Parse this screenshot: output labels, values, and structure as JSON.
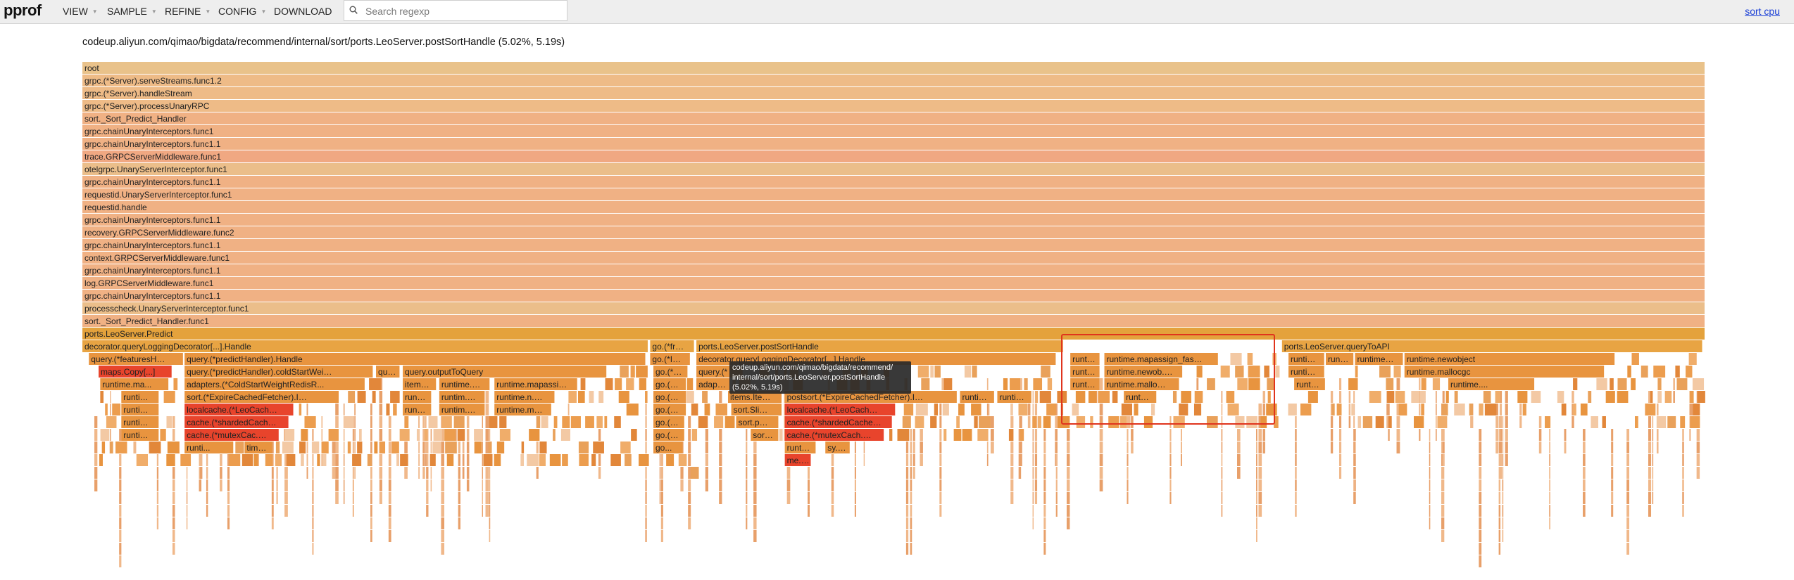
{
  "app": {
    "logo": "pprof"
  },
  "menu": [
    {
      "name": "view-menu",
      "label": "VIEW",
      "caret": true
    },
    {
      "name": "sample-menu",
      "label": "SAMPLE",
      "caret": true
    },
    {
      "name": "refine-menu",
      "label": "REFINE",
      "caret": true
    },
    {
      "name": "config-menu",
      "label": "CONFIG",
      "caret": true
    },
    {
      "name": "download-menu",
      "label": "DOWNLOAD",
      "caret": false
    }
  ],
  "search": {
    "placeholder": "Search regexp",
    "value": ""
  },
  "sort_label": "sort cpu",
  "title": "codeup.aliyun.com/qimao/bigdata/recommend/internal/sort/ports.LeoServer.postSortHandle (5.02%, 5.19s)",
  "colors": {
    "deep1": "#e9c28a",
    "deep2": "#f0b184",
    "hot": "#f0a882",
    "orange": "#e8943f",
    "orange_dark": "#e0882d",
    "red": "#e8442c",
    "red2": "#ec5a3a",
    "box": "#e0341d"
  },
  "stack": [
    {
      "label": "root",
      "color": "#e9c28a"
    },
    {
      "label": "grpc.(*Server).serveStreams.func1.2",
      "color": "#eebb87"
    },
    {
      "label": "grpc.(*Server).handleStream",
      "color": "#eebb87"
    },
    {
      "label": "grpc.(*Server).processUnaryRPC",
      "color": "#eebb87"
    },
    {
      "label": "sort._Sort_Predict_Handler",
      "color": "#f0b184"
    },
    {
      "label": "grpc.chainUnaryInterceptors.func1",
      "color": "#f0b184"
    },
    {
      "label": "grpc.chainUnaryInterceptors.func1.1",
      "color": "#f0b184"
    },
    {
      "label": "trace.GRPCServerMiddleware.func1",
      "color": "#f0a882"
    },
    {
      "label": "otelgrpc.UnaryServerInterceptor.func1",
      "color": "#ebbe8a"
    },
    {
      "label": "grpc.chainUnaryInterceptors.func1.1",
      "color": "#f0b184"
    },
    {
      "label": "requestid.UnaryServerInterceptor.func1",
      "color": "#f0b184"
    },
    {
      "label": "requestid.handle",
      "color": "#f0b184"
    },
    {
      "label": "grpc.chainUnaryInterceptors.func1.1",
      "color": "#f0b184"
    },
    {
      "label": "recovery.GRPCServerMiddleware.func2",
      "color": "#f0b184"
    },
    {
      "label": "grpc.chainUnaryInterceptors.func1.1",
      "color": "#f0b184"
    },
    {
      "label": "context.GRPCServerMiddleware.func1",
      "color": "#f0b184"
    },
    {
      "label": "grpc.chainUnaryInterceptors.func1.1",
      "color": "#f0b184"
    },
    {
      "label": "log.GRPCServerMiddleware.func1",
      "color": "#f0b184"
    },
    {
      "label": "grpc.chainUnaryInterceptors.func1.1",
      "color": "#f0b184"
    },
    {
      "label": "processcheck.UnaryServerInterceptor.func1",
      "color": "#ebbe8a"
    },
    {
      "label": "sort._Sort_Predict_Handler.func1",
      "color": "#f0b184"
    },
    {
      "label": "ports.LeoServer.Predict",
      "color": "#e4a23c"
    }
  ],
  "frames": [
    {
      "label": "decorator.queryLoggingDecorator[...].Handle",
      "row": 0,
      "start": 0,
      "end": 0.3485,
      "color": "#e8a443"
    },
    {
      "label": "go.(*fro...",
      "row": 0,
      "start": 0.35,
      "end": 0.377,
      "color": "#e8a443"
    },
    {
      "label": "ports.LeoServer.postSortHandle",
      "row": 0,
      "start": 0.3785,
      "end": 0.6045,
      "color": "#e8a443"
    },
    {
      "label": "ports.LeoServer.queryToAPI",
      "row": 0,
      "start": 0.7395,
      "end": 0.9985,
      "color": "#e8a443"
    },
    {
      "label": "query.(*featuresHa...",
      "row": 1,
      "start": 0.004,
      "end": 0.062,
      "color": "#e8943f"
    },
    {
      "label": "query.(*predictHandler).Handle",
      "row": 1,
      "start": 0.063,
      "end": 0.347,
      "color": "#e8943f"
    },
    {
      "label": "go.(*It...",
      "row": 1,
      "start": 0.35,
      "end": 0.3745,
      "color": "#e8943f"
    },
    {
      "label": "decorator.queryLoggingDecorator[...].Handle",
      "row": 1,
      "start": 0.3785,
      "end": 0.6,
      "color": "#e8943f"
    },
    {
      "label": "runti...",
      "row": 1,
      "start": 0.609,
      "end": 0.627,
      "color": "#e8943f"
    },
    {
      "label": "runtime.mapassign_faststr",
      "row": 1,
      "start": 0.63,
      "end": 0.7,
      "color": "#e8943f"
    },
    {
      "label": "runtime.m...",
      "row": 1,
      "start": 0.7435,
      "end": 0.7655,
      "color": "#e8943f"
    },
    {
      "label": "runt...",
      "row": 1,
      "start": 0.7665,
      "end": 0.7835,
      "color": "#e8943f"
    },
    {
      "label": "runtime....",
      "row": 1,
      "start": 0.7845,
      "end": 0.814,
      "color": "#e8943f"
    },
    {
      "label": "runtime.newobject",
      "row": 1,
      "start": 0.815,
      "end": 0.9445,
      "color": "#e8943f"
    },
    {
      "label": "maps.Copy[...]",
      "row": 2,
      "start": 0.01,
      "end": 0.055,
      "color": "#e8442c"
    },
    {
      "label": "query.(*predictHandler).coldStartWeightP...",
      "row": 2,
      "start": 0.063,
      "end": 0.179,
      "color": "#e8943f"
    },
    {
      "label": "qu...",
      "row": 2,
      "start": 0.181,
      "end": 0.1955,
      "color": "#e8943f"
    },
    {
      "label": "query.outputToQuery",
      "row": 2,
      "start": 0.1975,
      "end": 0.323,
      "color": "#e8943f"
    },
    {
      "label": "go.(*g...",
      "row": 2,
      "start": 0.352,
      "end": 0.373,
      "color": "#e8943f"
    },
    {
      "label": "query.(*",
      "row": 2,
      "start": 0.3785,
      "end": 0.407,
      "color": "#e8943f"
    },
    {
      "label": "runti...",
      "row": 2,
      "start": 0.609,
      "end": 0.627,
      "color": "#e8943f"
    },
    {
      "label": "runtime.newob...",
      "row": 2,
      "start": 0.63,
      "end": 0.678,
      "color": "#e8943f"
    },
    {
      "label": "runtime.m...",
      "row": 2,
      "start": 0.7435,
      "end": 0.7655,
      "color": "#e8943f"
    },
    {
      "label": "runtime.mallocgc",
      "row": 2,
      "start": 0.815,
      "end": 0.938,
      "color": "#e8943f"
    },
    {
      "label": "runtime.ma...",
      "row": 3,
      "start": 0.011,
      "end": 0.053,
      "color": "#e8943f"
    },
    {
      "label": "adapters.(*ColdStartWeightRedisR...",
      "row": 3,
      "start": 0.063,
      "end": 0.174,
      "color": "#e8943f"
    },
    {
      "label": "item...",
      "row": 3,
      "start": 0.1975,
      "end": 0.218,
      "color": "#e8943f"
    },
    {
      "label": "runtime....",
      "row": 3,
      "start": 0.22,
      "end": 0.251,
      "color": "#e8943f"
    },
    {
      "label": "runtime.mapassi...",
      "row": 3,
      "start": 0.254,
      "end": 0.305,
      "color": "#e8943f"
    },
    {
      "label": "go.(*...",
      "row": 3,
      "start": 0.352,
      "end": 0.372,
      "color": "#e8943f"
    },
    {
      "label": "adapte",
      "row": 3,
      "start": 0.3785,
      "end": 0.399,
      "color": "#e8943f"
    },
    {
      "label": "runti...",
      "row": 3,
      "start": 0.609,
      "end": 0.627,
      "color": "#e8943f"
    },
    {
      "label": "runtime.malloc...",
      "row": 3,
      "start": 0.63,
      "end": 0.676,
      "color": "#e8943f"
    },
    {
      "label": "runti...",
      "row": 3,
      "start": 0.747,
      "end": 0.766,
      "color": "#e8943f"
    },
    {
      "label": "runtime....",
      "row": 3,
      "start": 0.842,
      "end": 0.895,
      "color": "#e8943f"
    },
    {
      "label": "runti...",
      "row": 4,
      "start": 0.024,
      "end": 0.047,
      "color": "#e8943f"
    },
    {
      "label": "sort.(*ExpireCachedFetcher).Item...",
      "row": 4,
      "start": 0.063,
      "end": 0.158,
      "color": "#e8943f"
    },
    {
      "label": "runt...",
      "row": 4,
      "start": 0.1975,
      "end": 0.215,
      "color": "#e8943f"
    },
    {
      "label": "runtim...",
      "row": 4,
      "start": 0.22,
      "end": 0.248,
      "color": "#e8943f"
    },
    {
      "label": "runtime.n...",
      "row": 4,
      "start": 0.254,
      "end": 0.291,
      "color": "#e8943f"
    },
    {
      "label": "go.(*...",
      "row": 4,
      "start": 0.352,
      "end": 0.372,
      "color": "#e8943f"
    },
    {
      "label": "items.Ite...",
      "row": 4,
      "start": 0.398,
      "end": 0.431,
      "color": "#e8943f"
    },
    {
      "label": "postsort.(*ExpireCachedFetcher).Ite...",
      "row": 4,
      "start": 0.433,
      "end": 0.539,
      "color": "#e8943f"
    },
    {
      "label": "runti...",
      "row": 4,
      "start": 0.541,
      "end": 0.562,
      "color": "#e8943f"
    },
    {
      "label": "runti...",
      "row": 4,
      "start": 0.564,
      "end": 0.585,
      "color": "#e8943f"
    },
    {
      "label": "runt...",
      "row": 4,
      "start": 0.642,
      "end": 0.662,
      "color": "#e8943f"
    },
    {
      "label": "runti...",
      "row": 5,
      "start": 0.024,
      "end": 0.047,
      "color": "#e8943f"
    },
    {
      "label": "localcache.(*LeoCach...",
      "row": 5,
      "start": 0.063,
      "end": 0.13,
      "color": "#e8442c"
    },
    {
      "label": "runti...",
      "row": 5,
      "start": 0.1975,
      "end": 0.215,
      "color": "#e8943f"
    },
    {
      "label": "runtim...",
      "row": 5,
      "start": 0.22,
      "end": 0.248,
      "color": "#e8943f"
    },
    {
      "label": "runtime.m...",
      "row": 5,
      "start": 0.254,
      "end": 0.289,
      "color": "#e8943f"
    },
    {
      "label": "go.(*...",
      "row": 5,
      "start": 0.352,
      "end": 0.372,
      "color": "#e8943f"
    },
    {
      "label": "sort.Slice",
      "row": 5,
      "start": 0.4,
      "end": 0.431,
      "color": "#e8943f"
    },
    {
      "label": "localcache.(*LeoCache...",
      "row": 5,
      "start": 0.433,
      "end": 0.501,
      "color": "#e8442c"
    },
    {
      "label": "runti...",
      "row": 6,
      "start": 0.024,
      "end": 0.047,
      "color": "#e8943f"
    },
    {
      "label": "cache.(*shardedCach...",
      "row": 6,
      "start": 0.063,
      "end": 0.127,
      "color": "#e8442c"
    },
    {
      "label": "go.(...",
      "row": 6,
      "start": 0.352,
      "end": 0.371,
      "color": "#e8943f"
    },
    {
      "label": "sort.pdq...",
      "row": 6,
      "start": 0.403,
      "end": 0.429,
      "color": "#e8943f"
    },
    {
      "label": "cache.(*shardedCache...",
      "row": 6,
      "start": 0.433,
      "end": 0.499,
      "color": "#e8442c"
    },
    {
      "label": "runti...",
      "row": 7,
      "start": 0.024,
      "end": 0.047,
      "color": "#e8943f"
    },
    {
      "label": "cache.(*mutexCac...",
      "row": 7,
      "start": 0.063,
      "end": 0.121,
      "color": "#e8442c"
    },
    {
      "label": "go.(...",
      "row": 7,
      "start": 0.352,
      "end": 0.371,
      "color": "#e8943f"
    },
    {
      "label": "sor...",
      "row": 7,
      "start": 0.412,
      "end": 0.429,
      "color": "#e8943f"
    },
    {
      "label": "cache.(*mutexCach...",
      "row": 7,
      "start": 0.433,
      "end": 0.494,
      "color": "#e8442c"
    },
    {
      "label": "runti...",
      "row": 8,
      "start": 0.063,
      "end": 0.093,
      "color": "#e8943f"
    },
    {
      "label": "tim...",
      "row": 8,
      "start": 0.1,
      "end": 0.117,
      "color": "#e8943f"
    },
    {
      "label": "go...",
      "row": 8,
      "start": 0.352,
      "end": 0.37,
      "color": "#e8943f"
    },
    {
      "label": "runti...",
      "row": 8,
      "start": 0.433,
      "end": 0.452,
      "color": "#e8943f"
    },
    {
      "label": "sy...",
      "row": 8,
      "start": 0.458,
      "end": 0.473,
      "color": "#e8943f"
    },
    {
      "label": "me...",
      "row": 9,
      "start": 0.433,
      "end": 0.449,
      "color": "#e8442c"
    }
  ],
  "tooltip": {
    "line1": "codeup.aliyun.com/qimao/bigdata/recommend/",
    "line2": "internal/sort/ports.LeoServer.postSortHandle",
    "line3": "(5.02%, 5.19s)"
  }
}
